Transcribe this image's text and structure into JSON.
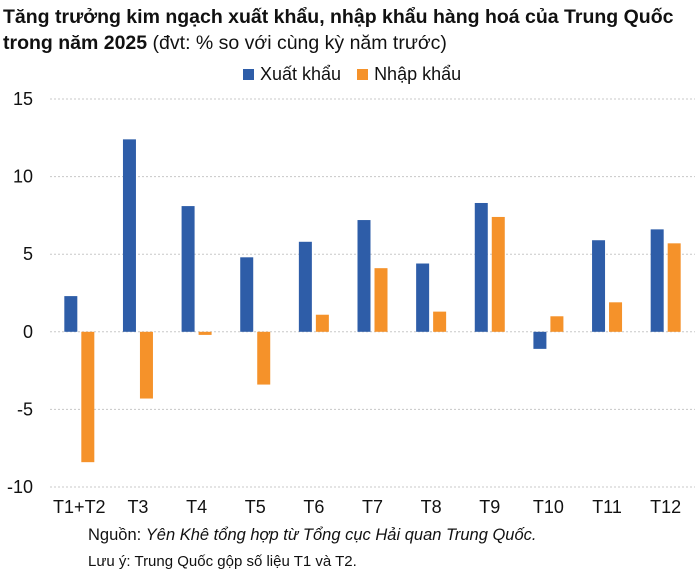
{
  "title": {
    "main": "Tăng trưởng kim ngạch xuất khẩu, nhập khẩu hàng hoá của Trung Quốc trong năm 2025",
    "unit": " (đvt: % so với cùng kỳ năm trước)"
  },
  "footer": {
    "source_label": "Nguồn: ",
    "source_text": "Yên Khê tổng hợp từ Tổng cục Hải quan Trung Quốc.",
    "note": "Lưu ý: Trung Quốc gộp số liệu T1 và T2."
  },
  "chart_data": {
    "type": "bar",
    "title": "Tăng trưởng kim ngạch xuất khẩu, nhập khẩu hàng hoá của Trung Quốc trong năm 2025",
    "xlabel": "",
    "ylabel": "% so với cùng kỳ năm trước",
    "ylim": [
      -10,
      15
    ],
    "yticks": [
      15,
      10,
      5,
      0,
      -5,
      -10
    ],
    "grid": true,
    "legend_position": "top",
    "categories": [
      "T1+T2",
      "T3",
      "T4",
      "T5",
      "T6",
      "T7",
      "T8",
      "T9",
      "T10",
      "T11",
      "T12"
    ],
    "series": [
      {
        "name": "Xuất khẩu",
        "color": "#2e5da8",
        "values": [
          2.3,
          12.4,
          8.1,
          4.8,
          5.8,
          7.2,
          4.4,
          8.3,
          -1.1,
          5.9,
          6.6
        ]
      },
      {
        "name": "Nhập khẩu",
        "color": "#f5922a",
        "values": [
          -8.4,
          -4.3,
          -0.2,
          -3.4,
          1.1,
          4.1,
          1.3,
          7.4,
          1.0,
          1.9,
          5.7
        ]
      }
    ]
  }
}
